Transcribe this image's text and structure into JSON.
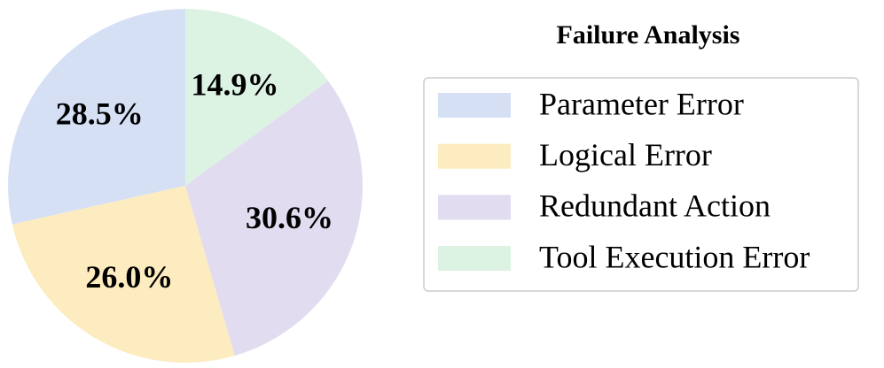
{
  "chart_data": {
    "type": "pie",
    "title": "Failure Analysis",
    "categories": [
      "Parameter Error",
      "Logical Error",
      "Redundant Action",
      "Tool Execution Error"
    ],
    "values": [
      28.5,
      26.0,
      30.6,
      14.9
    ],
    "value_labels": [
      "28.5%",
      "26.0%",
      "30.6%",
      "14.9%"
    ],
    "colors": [
      "#d6e0f5",
      "#fdecc0",
      "#e2dcf0",
      "#dcf2e3"
    ],
    "start_angle": 90,
    "direction": "counterclockwise",
    "legend": "right"
  }
}
